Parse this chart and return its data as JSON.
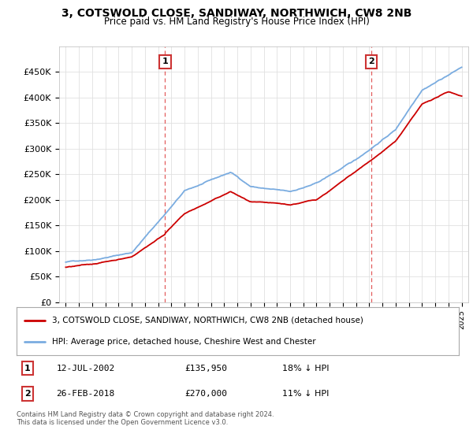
{
  "title": "3, COTSWOLD CLOSE, SANDIWAY, NORTHWICH, CW8 2NB",
  "subtitle": "Price paid vs. HM Land Registry's House Price Index (HPI)",
  "ylim": [
    0,
    500000
  ],
  "yticks": [
    0,
    50000,
    100000,
    150000,
    200000,
    250000,
    300000,
    350000,
    400000,
    450000
  ],
  "ytick_labels": [
    "£0",
    "£50K",
    "£100K",
    "£150K",
    "£200K",
    "£250K",
    "£300K",
    "£350K",
    "£400K",
    "£450K"
  ],
  "legend_line1": "3, COTSWOLD CLOSE, SANDIWAY, NORTHWICH, CW8 2NB (detached house)",
  "legend_line2": "HPI: Average price, detached house, Cheshire West and Chester",
  "line1_color": "#cc0000",
  "line2_color": "#7aace0",
  "marker1": {
    "label": "1",
    "date": "12-JUL-2002",
    "price": "£135,950",
    "hpi": "18% ↓ HPI",
    "x_year": 2002.53
  },
  "marker2": {
    "label": "2",
    "date": "26-FEB-2018",
    "price": "£270,000",
    "hpi": "11% ↓ HPI",
    "x_year": 2018.15
  },
  "footer": "Contains HM Land Registry data © Crown copyright and database right 2024.\nThis data is licensed under the Open Government Licence v3.0.",
  "background_color": "#ffffff",
  "grid_color": "#e0e0e0",
  "xlim_start": 1994.5,
  "xlim_end": 2025.5,
  "year_start": 1995,
  "year_end": 2025
}
